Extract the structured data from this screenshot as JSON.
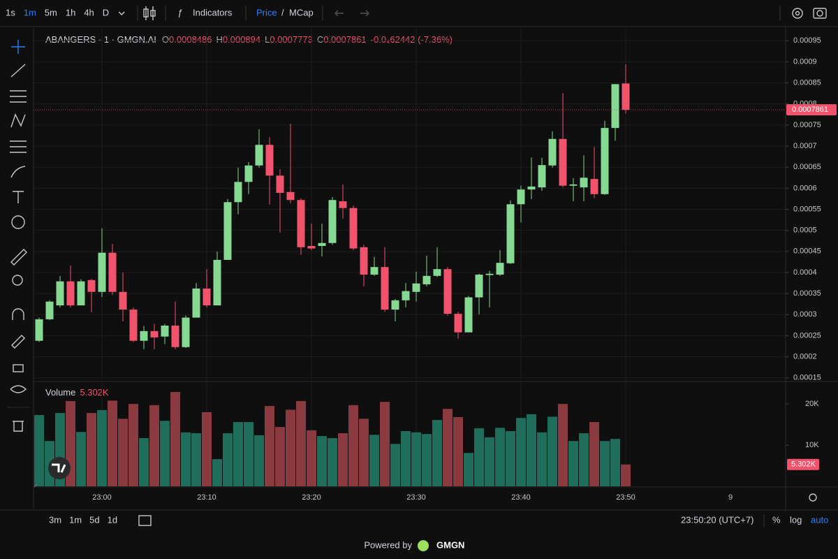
{
  "toolbar": {
    "intervals": [
      "1s",
      "1m",
      "5m",
      "1h",
      "4h",
      "D"
    ],
    "active_interval": 1,
    "indicators": "Indicators",
    "price": "Price",
    "separator": "/",
    "mcap": "MCap"
  },
  "bottom_bar": {
    "ranges": [
      "3m",
      "1m",
      "5d",
      "1d"
    ],
    "clock": "23:50:20 (UTC+7)",
    "percent": "%",
    "log": "log",
    "auto": "auto"
  },
  "footer": {
    "powered": "Powered by",
    "brand": "GMGN"
  },
  "chart_data": [
    {
      "type": "candlestick",
      "title": "ABANGERS · 1 · GMGN.AI",
      "legend_keys": {
        "open": "O",
        "high": "H",
        "low": "L",
        "close": "C"
      },
      "change": "-0.0₄62442 (-7.36%)",
      "up_color": "#86d993",
      "down_color": "#f0536b",
      "categories": [
        null,
        null,
        null,
        null,
        null,
        null,
        "23:00",
        null,
        null,
        null,
        null,
        null,
        null,
        null,
        null,
        null,
        "23:10",
        null,
        null,
        null,
        null,
        null,
        null,
        null,
        null,
        null,
        "23:20",
        null,
        null,
        null,
        null,
        null,
        null,
        null,
        null,
        null,
        "23:30",
        null,
        null,
        null,
        null,
        null,
        null,
        null,
        null,
        null,
        "23:40",
        null,
        null,
        null,
        null,
        null,
        null,
        null,
        null,
        null,
        "23:50"
      ],
      "future_tick_label": "9",
      "open": [
        0.000238,
        0.000289,
        0.000322,
        0.000379,
        0.000322,
        0.000382,
        0.000354,
        0.000447,
        0.000354,
        0.000312,
        0.000238,
        0.000261,
        0.000248,
        0.000274,
        0.000223,
        0.000293,
        0.000362,
        0.000322,
        0.00043,
        0.000567,
        0.000615,
        0.000654,
        0.000703,
        0.00063,
        0.000591,
        0.000572,
        0.000463,
        0.000463,
        0.00047,
        0.000569,
        0.000553,
        0.00046,
        0.000395,
        0.000413,
        0.000312,
        0.000334,
        0.000354,
        0.000372,
        0.000392,
        0.000408,
        0.000302,
        0.000258,
        0.000341,
        0.000394,
        0.000395,
        0.000422,
        0.000562,
        0.000597,
        0.000602,
        0.000654,
        0.000717,
        0.000606,
        0.000602,
        0.000622,
        0.000586,
        0.000743,
        0.0008486
      ],
      "high": [
        0.000293,
        0.000334,
        0.000392,
        0.000417,
        0.000384,
        0.000385,
        0.000505,
        0.000468,
        0.0004,
        0.000317,
        0.000273,
        0.000278,
        0.000278,
        0.000331,
        0.000298,
        0.000375,
        0.000408,
        0.00045,
        0.000574,
        0.000649,
        0.000662,
        0.00074,
        0.000721,
        0.000645,
        0.000753,
        0.000576,
        0.000516,
        0.000516,
        0.000579,
        0.000609,
        0.000559,
        0.000466,
        0.000437,
        0.00046,
        0.000337,
        0.000375,
        0.000402,
        0.00044,
        0.00046,
        0.000413,
        0.000307,
        0.000344,
        0.000397,
        0.000404,
        0.000453,
        0.000571,
        0.000606,
        0.000673,
        0.000672,
        0.000735,
        0.000826,
        0.000624,
        0.000678,
        0.000698,
        0.00076,
        0.000847,
        0.000894
      ],
      "low": [
        0.000235,
        0.000287,
        0.000317,
        0.000317,
        0.000322,
        0.000306,
        0.000342,
        0.000347,
        0.000284,
        0.000235,
        0.000218,
        0.000218,
        0.00023,
        0.000218,
        0.000221,
        0.000293,
        0.000317,
        0.000322,
        0.00043,
        0.000538,
        0.000586,
        0.000649,
        0.000561,
        0.000495,
        0.000564,
        0.000442,
        0.000453,
        0.000438,
        0.000466,
        0.000528,
        0.000453,
        0.000367,
        0.000392,
        0.000307,
        0.000284,
        0.000317,
        0.000331,
        0.000367,
        0.000389,
        0.000298,
        0.000243,
        0.000258,
        0.000301,
        0.000317,
        0.000392,
        0.00042,
        0.000519,
        0.000574,
        0.000594,
        0.000649,
        0.000602,
        0.000569,
        0.000569,
        0.000577,
        0.000584,
        0.000713,
        0.0007773
      ],
      "close": [
        0.000289,
        0.000331,
        0.000379,
        0.000322,
        0.000379,
        0.000354,
        0.000447,
        0.000354,
        0.000312,
        0.000238,
        0.000261,
        0.000246,
        0.000274,
        0.000223,
        0.000293,
        0.000362,
        0.000322,
        0.00043,
        0.000567,
        0.000615,
        0.000654,
        0.000703,
        0.00063,
        0.000589,
        0.000572,
        0.00046,
        0.000457,
        0.00047,
        0.000572,
        0.000553,
        0.000457,
        0.000395,
        0.000413,
        0.000312,
        0.000334,
        0.000356,
        0.000374,
        0.000392,
        0.000408,
        0.000302,
        0.000258,
        0.000341,
        0.000395,
        0.000397,
        0.000423,
        0.000562,
        0.000597,
        0.000604,
        0.000655,
        0.000717,
        0.000606,
        0.000609,
        0.000625,
        0.000586,
        0.000743,
        0.000847,
        0.0007861
      ],
      "ylim": [
        0.000143,
        0.000977
      ],
      "yticks": [
        0.00015,
        0.0002,
        0.00025,
        0.0003,
        0.00035,
        0.0004,
        0.00045,
        0.0005,
        0.00055,
        0.0006,
        0.00065,
        0.0007,
        0.00075,
        0.0008,
        0.00085,
        0.0009,
        0.00095
      ],
      "grid": true
    },
    {
      "type": "bar",
      "title": "Volume",
      "up_color": "#1f6e5c",
      "down_color": "#8b3a40",
      "values": [
        17300,
        11000,
        17800,
        20700,
        13200,
        17800,
        18500,
        20800,
        16400,
        20000,
        11700,
        19700,
        15900,
        22900,
        13100,
        12900,
        18000,
        6600,
        12900,
        15600,
        15600,
        12400,
        19500,
        14400,
        18600,
        20700,
        13600,
        12200,
        11700,
        12900,
        19700,
        16400,
        12500,
        20500,
        10300,
        13400,
        13100,
        12700,
        16100,
        18800,
        16800,
        8100,
        14100,
        11900,
        14200,
        13400,
        16600,
        17500,
        13100,
        16900,
        20000,
        11000,
        12900,
        15600,
        11000,
        11500,
        5302
      ],
      "last_value_label": "5.302K",
      "ylim": [
        0,
        25100
      ],
      "yticks": [
        {
          "value": 10000,
          "label": "10K"
        },
        {
          "value": 20000,
          "label": "20K"
        }
      ]
    }
  ]
}
